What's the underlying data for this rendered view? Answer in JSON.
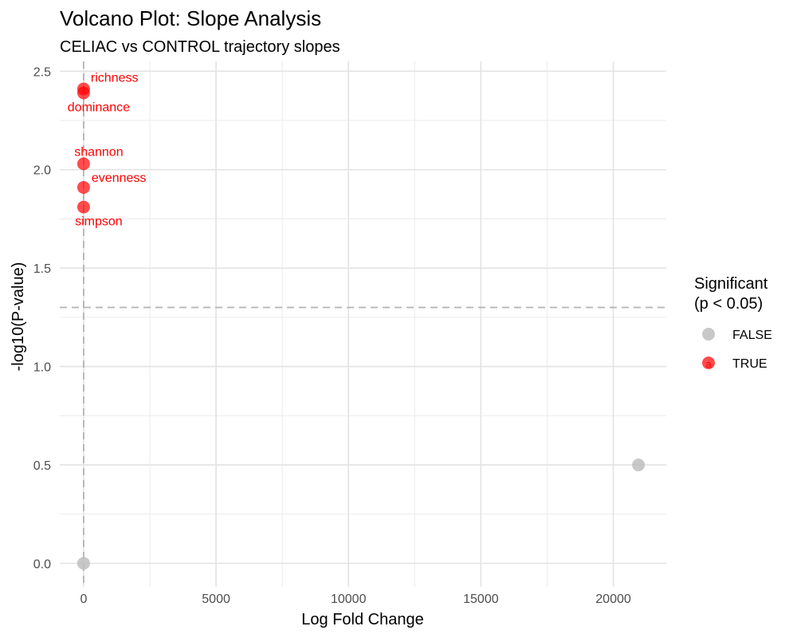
{
  "chart_data": {
    "type": "scatter",
    "title": "Volcano Plot: Slope Analysis",
    "subtitle": "CELIAC vs CONTROL trajectory slopes",
    "xlabel": "Log Fold Change",
    "ylabel": "-log10(P-value)",
    "xlim": [
      -900,
      22000
    ],
    "ylim": [
      -0.12,
      2.55
    ],
    "x_ticks": [
      0,
      5000,
      10000,
      15000,
      20000
    ],
    "x_tick_labels": [
      "0",
      "5000",
      "10000",
      "15000",
      "20000"
    ],
    "y_ticks": [
      0.0,
      0.5,
      1.0,
      1.5,
      2.0,
      2.5
    ],
    "y_tick_labels": [
      "0.0",
      "0.5",
      "1.0",
      "1.5",
      "2.0",
      "2.5"
    ],
    "grid": true,
    "reference_lines": {
      "horizontal_y": 1.3,
      "vertical_x": 0
    },
    "legend": {
      "title_line1": "Significant",
      "title_line2": "(p < 0.05)",
      "placement": "right",
      "entries": [
        {
          "label": "FALSE",
          "color": "#bebebe"
        },
        {
          "label": "TRUE",
          "color": "#ff0000"
        }
      ]
    },
    "points": [
      {
        "x": 20950,
        "y": 0.5,
        "significant": false
      },
      {
        "x": 0,
        "y": 0.0,
        "significant": false
      },
      {
        "x": 0,
        "y": 2.41,
        "significant": true,
        "label": "richness"
      },
      {
        "x": 0,
        "y": 2.39,
        "significant": true,
        "label": "dominance"
      },
      {
        "x": 0,
        "y": 2.03,
        "significant": true,
        "label": "shannon"
      },
      {
        "x": 0,
        "y": 1.91,
        "significant": true,
        "label": "evenness"
      },
      {
        "x": 0,
        "y": 1.81,
        "significant": true,
        "label": "simpson"
      }
    ]
  }
}
